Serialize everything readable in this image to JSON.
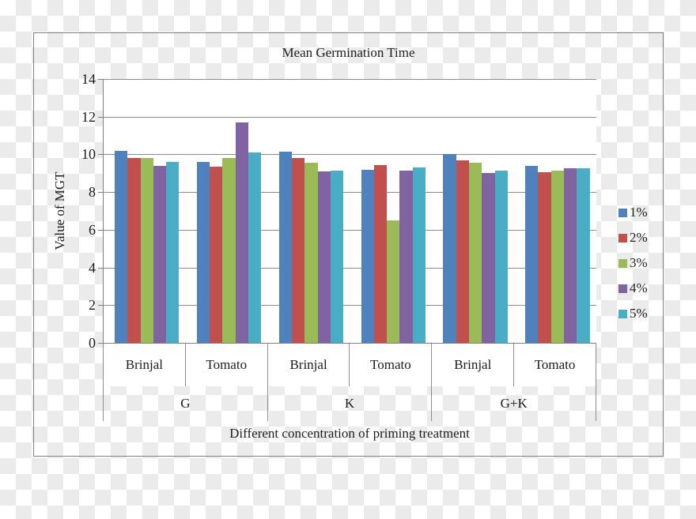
{
  "figure": {
    "title": "Mean Germination Time",
    "y_axis_title": "Value of MGT",
    "x_axis_title": "Different concentration of priming treatment"
  },
  "chart_data": {
    "type": "bar",
    "title": "Mean Germination Time",
    "xlabel": "Different concentration of priming treatment",
    "ylabel": "Value of MGT",
    "ylim": [
      0,
      14
    ],
    "yticks": [
      0,
      2,
      4,
      6,
      8,
      10,
      12,
      14
    ],
    "grid": true,
    "legend_position": "right-outside",
    "group_labels": [
      "G",
      "K",
      "G+K"
    ],
    "categories": [
      "Brinjal",
      "Tomato",
      "Brinjal",
      "Tomato",
      "Brinjal",
      "Tomato"
    ],
    "series": [
      {
        "name": "1%",
        "color": "#4f81bd",
        "values": [
          10.2,
          9.6,
          10.15,
          9.2,
          10.0,
          9.4
        ]
      },
      {
        "name": "2%",
        "color": "#c0504d",
        "values": [
          9.8,
          9.35,
          9.8,
          9.45,
          9.7,
          9.05
        ]
      },
      {
        "name": "3%",
        "color": "#9bbb59",
        "values": [
          9.8,
          9.8,
          9.55,
          6.5,
          9.55,
          9.15
        ]
      },
      {
        "name": "4%",
        "color": "#8064a2",
        "values": [
          9.4,
          11.7,
          9.1,
          9.15,
          9.0,
          9.25
        ]
      },
      {
        "name": "5%",
        "color": "#4bacc6",
        "values": [
          9.6,
          10.1,
          9.15,
          9.3,
          9.15,
          9.25
        ]
      }
    ]
  }
}
